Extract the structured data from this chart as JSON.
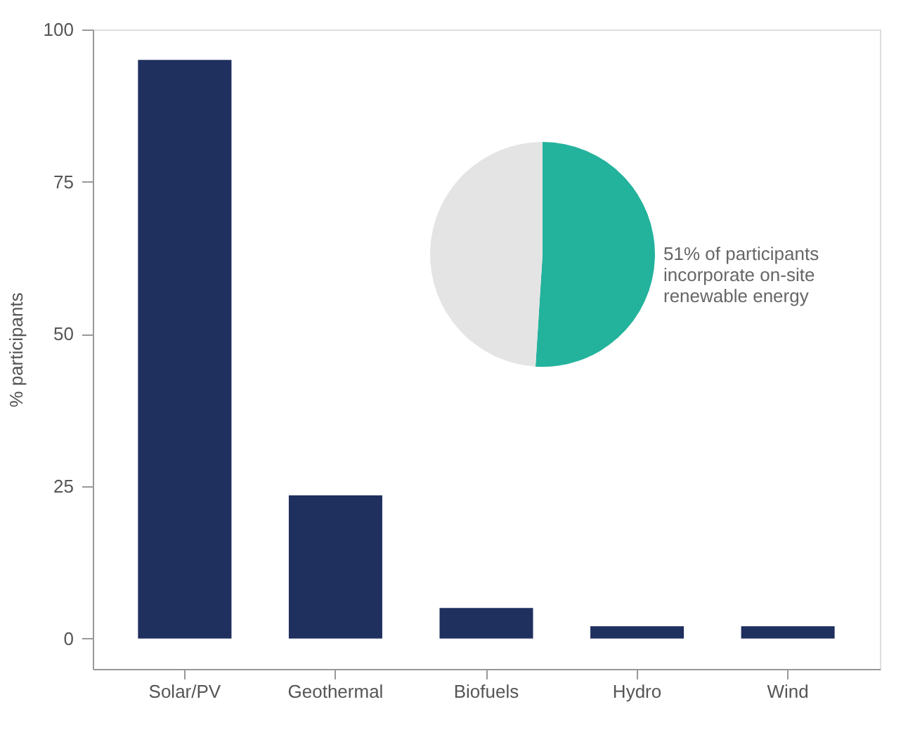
{
  "chart_data": [
    {
      "type": "bar",
      "categories": [
        "Solar/PV",
        "Geothermal",
        "Biofuels",
        "Hydro",
        "Wind"
      ],
      "values": [
        95,
        23.5,
        5,
        2,
        2
      ],
      "color": "#1f2f5e",
      "ylabel": "% participants",
      "ylim": [
        -5,
        100
      ],
      "yticks": [
        0,
        25,
        50,
        75,
        100
      ],
      "grid": false
    },
    {
      "type": "pie",
      "categories": [
        null,
        null
      ],
      "values": [
        51,
        49
      ],
      "colors": [
        "#23b29c",
        "#e4e4e4"
      ],
      "annotations": [
        "51% of participants\nincorporate on-site\nrenewable energy"
      ]
    }
  ]
}
